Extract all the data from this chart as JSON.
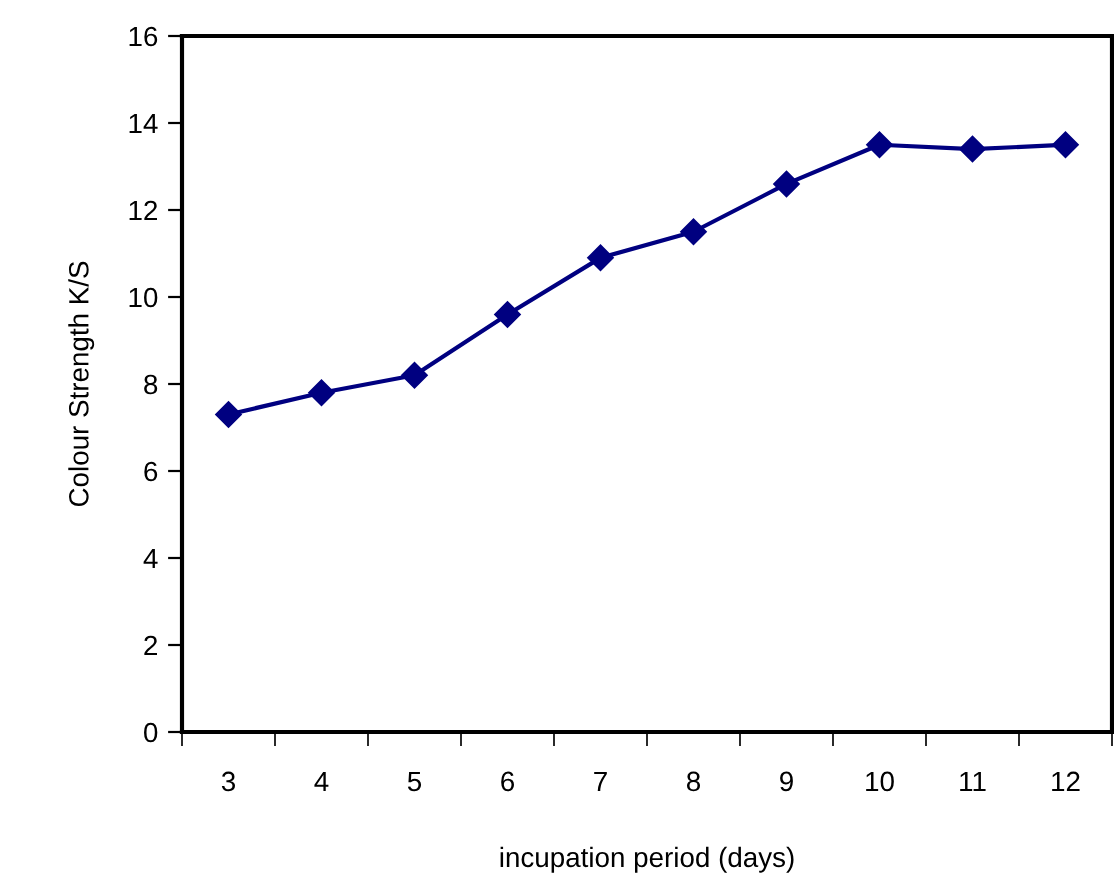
{
  "chart_data": {
    "type": "line",
    "xlabel": "incupation period (days)",
    "ylabel": "Colour Strength K/S",
    "categories": [
      "3",
      "4",
      "5",
      "6",
      "7",
      "8",
      "9",
      "10",
      "11",
      "12"
    ],
    "series": [
      {
        "color": "#000080",
        "values": [
          7.3,
          7.8,
          8.2,
          9.6,
          10.9,
          11.5,
          12.6,
          13.5,
          13.4,
          13.5
        ]
      }
    ],
    "ylim": [
      0,
      16
    ],
    "yticks": [
      0,
      2,
      4,
      6,
      8,
      10,
      12,
      14,
      16
    ],
    "marker": "diamond",
    "line_style": "solid",
    "grid": false,
    "legend": false
  }
}
